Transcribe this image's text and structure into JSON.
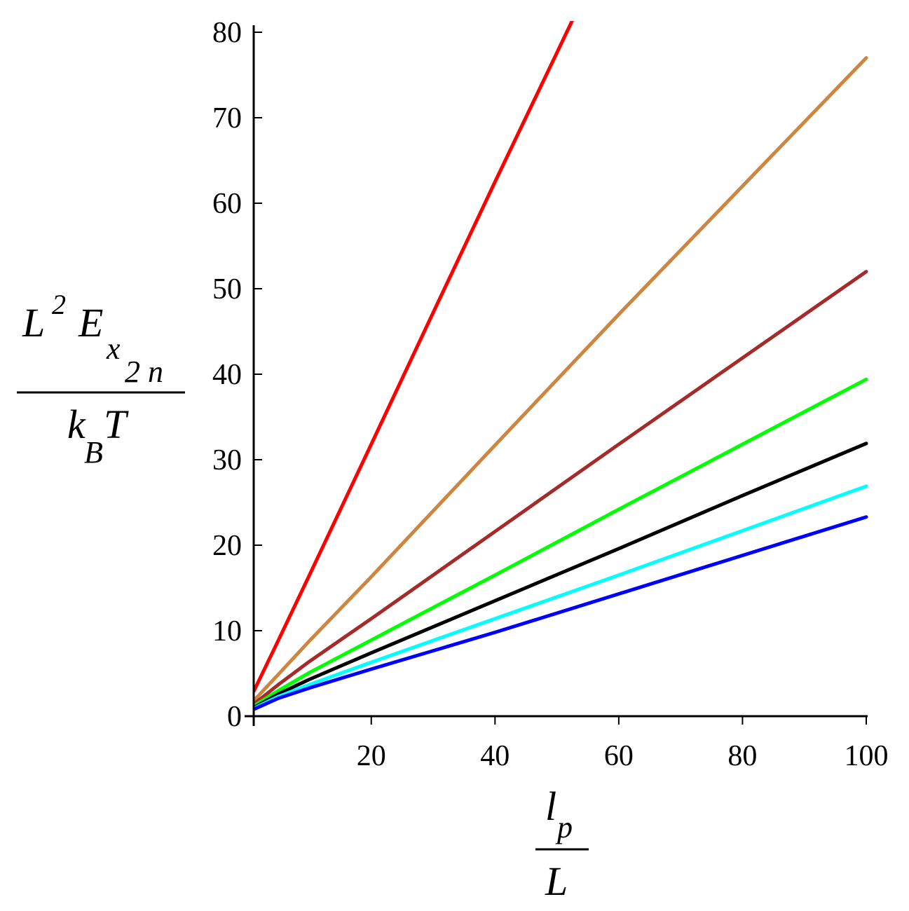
{
  "chart_data": {
    "type": "line",
    "xlim": [
      1,
      100
    ],
    "ylim": [
      0,
      80
    ],
    "x_ticks": [
      20,
      40,
      60,
      80,
      100
    ],
    "y_ticks": [
      0,
      10,
      20,
      30,
      40,
      50,
      60,
      70,
      80
    ],
    "grid": false,
    "ylabel": {
      "numerator": {
        "base": "L",
        "exponent": "2",
        "symbol": "E",
        "subscript": "x",
        "sub_subscript": "2 n"
      },
      "denominator": {
        "base": "k",
        "subscript": "B",
        "symbol": "T"
      }
    },
    "xlabel": {
      "numerator": {
        "base": "l",
        "subscript": "p"
      },
      "denominator": {
        "base": "L"
      }
    },
    "series": [
      {
        "color": "#ff0000",
        "x": [
          1,
          5,
          10,
          20,
          30,
          40,
          50,
          52.9
        ],
        "y": [
          2.9,
          8.9,
          16.5,
          31.8,
          47.2,
          62.5,
          77.6,
          82.0
        ]
      },
      {
        "color": "#cd853f",
        "x": [
          1,
          5,
          10,
          20,
          40,
          60,
          80,
          100
        ],
        "y": [
          1.8,
          4.9,
          8.8,
          16.3,
          31.7,
          47.0,
          62.0,
          77.0
        ]
      },
      {
        "color": "#a52a2a",
        "x": [
          1,
          5,
          10,
          20,
          40,
          60,
          80,
          100
        ],
        "y": [
          1.4,
          3.7,
          6.4,
          11.4,
          21.6,
          31.8,
          41.9,
          52.0
        ]
      },
      {
        "color": "#00ff00",
        "x": [
          1,
          5,
          10,
          20,
          40,
          60,
          80,
          100
        ],
        "y": [
          1.2,
          3.0,
          5.1,
          8.9,
          16.5,
          24.2,
          31.8,
          39.4
        ]
      },
      {
        "color": "#000000",
        "x": [
          1,
          5,
          10,
          20,
          40,
          60,
          80,
          100
        ],
        "y": [
          1.0,
          2.6,
          4.3,
          7.4,
          13.5,
          19.6,
          25.8,
          31.9
        ]
      },
      {
        "color": "#00ffff",
        "x": [
          1,
          5,
          10,
          20,
          40,
          60,
          80,
          100
        ],
        "y": [
          0.9,
          2.3,
          3.7,
          6.3,
          11.4,
          16.5,
          21.7,
          26.9
        ]
      },
      {
        "color": "#0000ff",
        "x": [
          1,
          5,
          10,
          20,
          40,
          60,
          80,
          100
        ],
        "y": [
          0.8,
          2.1,
          3.3,
          5.5,
          9.8,
          14.3,
          18.8,
          23.3
        ]
      }
    ]
  }
}
